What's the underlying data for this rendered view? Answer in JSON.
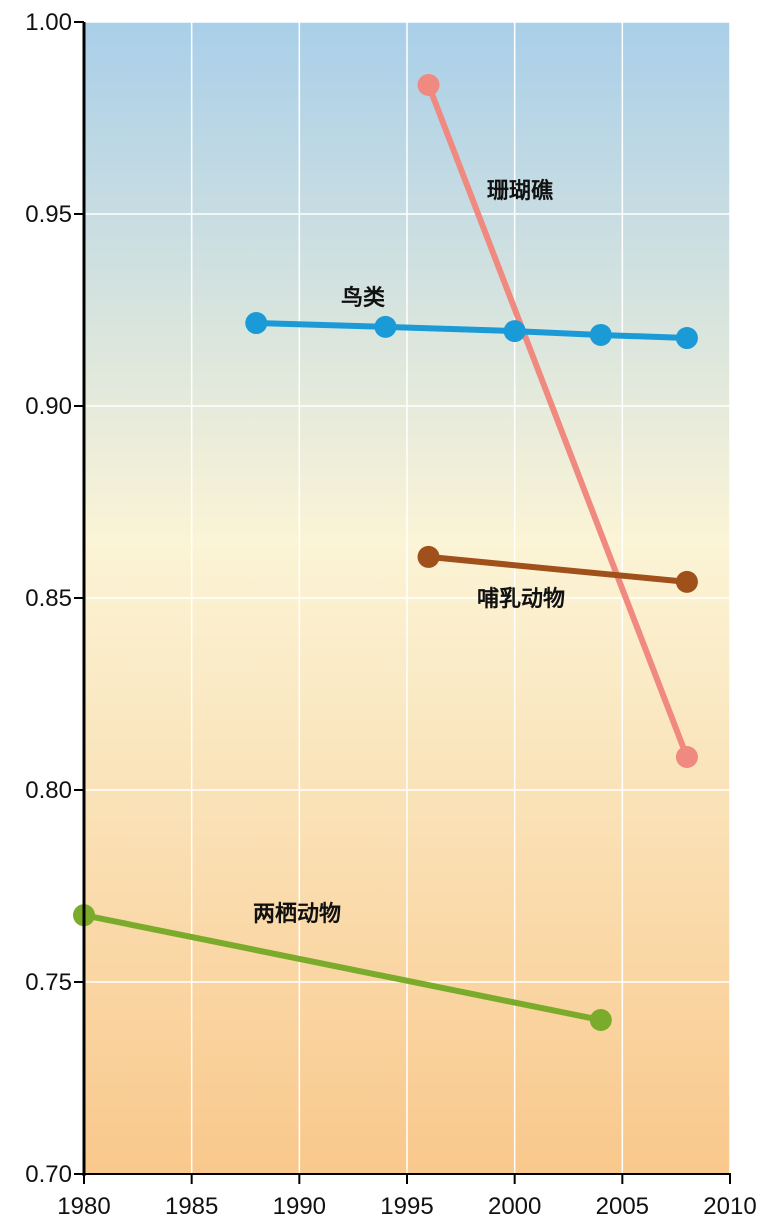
{
  "chart_data": {
    "type": "line",
    "xlim": [
      1980,
      2010
    ],
    "xticks": [
      1980,
      1985,
      1990,
      1995,
      2000,
      2005,
      2010
    ],
    "ylim": [
      0.7,
      1.0
    ],
    "yticks": [
      {
        "value": 0.7,
        "label": "0.70"
      },
      0.75,
      {
        "value": 0.8,
        "label": "0.80"
      },
      0.85,
      {
        "value": 0.9,
        "label": "0.90"
      },
      0.95,
      {
        "value": 1.0,
        "label": "1.00"
      }
    ],
    "grid": true,
    "series": [
      {
        "name": "珊瑚礁",
        "color": "#f08a80",
        "x": [
          1996,
          2008
        ],
        "values": [
          0.9836,
          0.8086
        ]
      },
      {
        "name": "鸟类",
        "color": "#1a9ad6",
        "x": [
          1988,
          1994,
          2000,
          2004,
          2008
        ],
        "values": [
          0.9216,
          0.9206,
          0.9195,
          0.9185,
          0.9177
        ]
      },
      {
        "name": "哺乳动物",
        "color": "#a0501a",
        "x": [
          1996,
          2008
        ],
        "values": [
          0.8607,
          0.8542
        ]
      },
      {
        "name": "两栖动物",
        "color": "#7aab2a",
        "x": [
          1980,
          2004
        ],
        "values": [
          0.7674,
          0.7401
        ]
      }
    ]
  }
}
